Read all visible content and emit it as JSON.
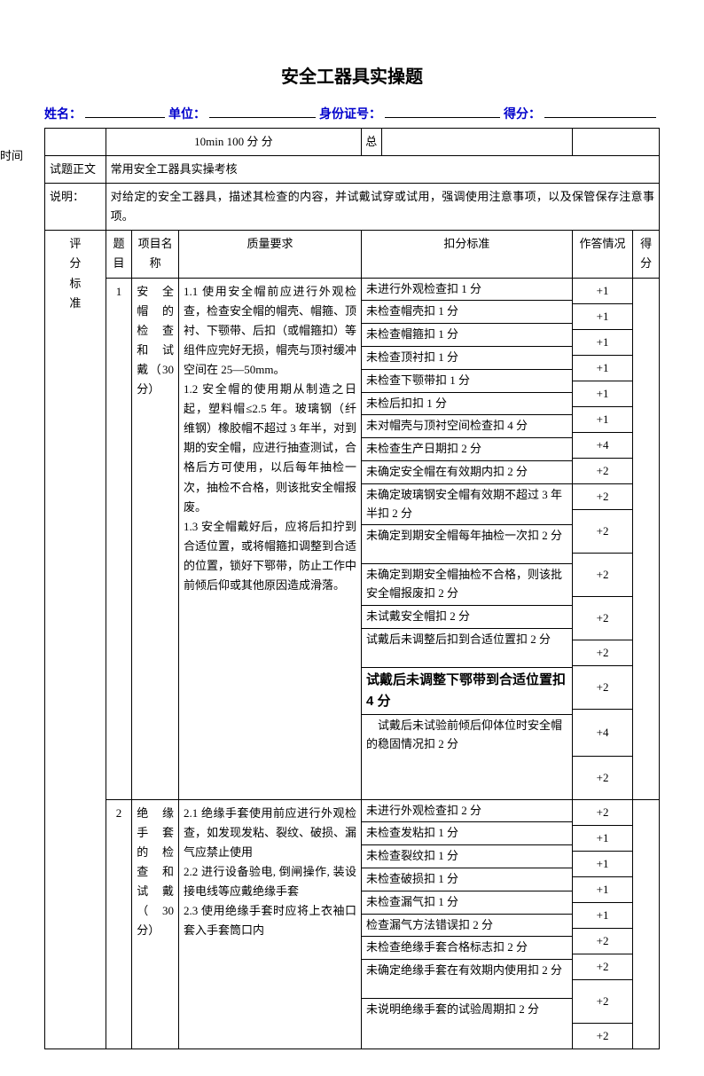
{
  "title": "安全工器具实操题",
  "header": {
    "name_label": "姓名：",
    "unit_label": "单位：",
    "id_label": "身份证号：",
    "score_label": "得分："
  },
  "side_label": "时间",
  "row_time": {
    "content": "10min  100 分 分",
    "zong": "总"
  },
  "row_zw": {
    "label": "试题正文",
    "content": "常用安全工器具实操考核"
  },
  "row_sm": {
    "label": "说明：",
    "content": "对给定的安全工器具，描述其检查的内容，并试戴试穿或试用，强调使用注意事项，以及保管保存注意事项。"
  },
  "grid_head": {
    "c1": "题目",
    "c2": "项目名称",
    "c3": "质量要求",
    "c4": "扣分标准",
    "c5": "作答情况",
    "c6": "得分"
  },
  "pingfen": "评\n分\n标\n准",
  "item1": {
    "no": "1",
    "name": "安 全帽 的检 查和 试戴（30 分）",
    "req": "1.1 使用安全帽前应进行外观检查，检查安全帽的帽壳、帽箍、顶衬、下颚带、后扣（或帽箍扣）等组件应完好无损，帽壳与顶衬缓冲空间在 25—50mm。\n1.2  安全帽的使用期从制造之日起，塑料帽≤2.5 年。玻璃钢（纤维钢）橡胶帽不超过 3 年半，对到期的安全帽，应进行抽查测试，合格后方可使用，以后每年抽检一次，抽检不合格，则该批安全帽报废。\n1.3  安全帽戴好后，应将后扣拧到合适位置，或将帽箍扣调整到合适的位置，锁好下鄂带，防止工作中前倾后仰或其他原因造成滑落。",
    "deducts": [
      "未进行外观检查扣 1 分",
      "未检查帽壳扣 1 分",
      "未检查帽箍扣 1 分",
      "未检查顶衬扣 1 分",
      "未检查下颚带扣 1 分",
      "未检后扣扣 1 分",
      "未对帽壳与顶衬空间检查扣 4 分",
      "未检查生产日期扣 2 分",
      "未确定安全帽在有效期内扣 2 分",
      "未确定玻璃钢安全帽有效期不超过 3 年半扣 2 分",
      "未确定到期安全帽每年抽检一次扣 2 分",
      "未确定到期安全帽抽检不合格，则该批安全帽报废扣 2 分",
      "未试戴安全帽扣 2 分",
      "试戴后未调整后扣到合适位置扣 2 分",
      "试戴后未调整下鄂带到合适位置扣 4 分",
      "　试戴后未试验前倾后仰体位时安全帽的稳固情况扣 2 分"
    ],
    "scores": [
      "+1",
      "+1",
      "+1",
      "+1",
      "+1",
      "+1",
      "+4",
      "+2",
      "+2",
      "+2",
      "+2",
      "+2",
      "+2",
      "+2",
      "+4",
      "+2"
    ]
  },
  "item2": {
    "no": "2",
    "name": "绝 缘手 套的 检查 和试 戴（ 30 分）",
    "req": " 2.1 绝缘手套使用前应进行外观检查，如发现发粘、裂纹、破损、漏气应禁止使用\n2.2 进行设备验电, 倒闸操作, 装设接电线等应戴绝缘手套\n2.3 使用绝缘手套时应将上衣袖口套入手套筒口内",
    "deducts": [
      "未进行外观检查扣 2 分",
      "未检查发粘扣 1 分",
      "未检查裂纹扣 1 分",
      "未检查破损扣 1 分",
      "未检查漏气扣 1 分",
      "检查漏气方法错误扣 2 分",
      "未检查绝缘手套合格标志扣 2 分",
      "未确定绝缘手套在有效期内使用扣 2 分",
      "未说明绝缘手套的试验周期扣 2 分"
    ],
    "scores": [
      "+2",
      "+1",
      "+1",
      "+1",
      "+1",
      "+2",
      "+2",
      "+2",
      "+2"
    ]
  }
}
